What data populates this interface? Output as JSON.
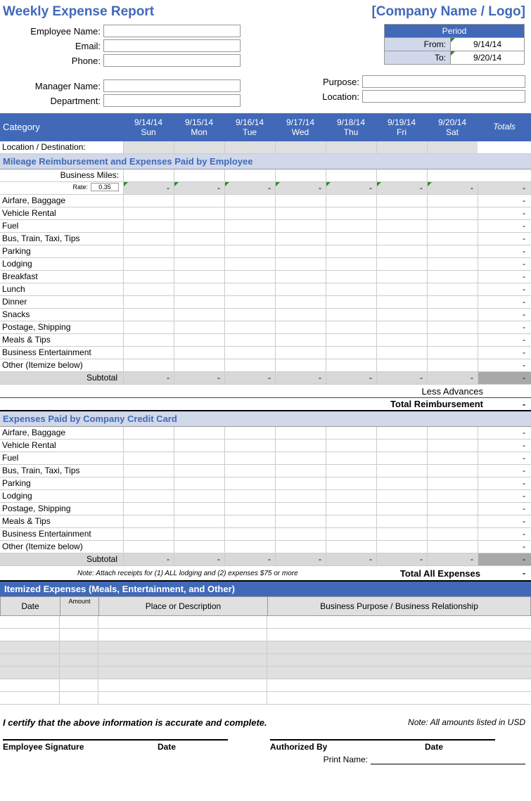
{
  "title": "Weekly Expense Report",
  "company": "[Company Name / Logo]",
  "fields": {
    "employeeName": "Employee Name:",
    "email": "Email:",
    "phone": "Phone:",
    "managerName": "Manager Name:",
    "department": "Department:",
    "purpose": "Purpose:",
    "location": "Location:"
  },
  "period": {
    "header": "Period",
    "fromLabel": "From:",
    "toLabel": "To:",
    "from": "9/14/14",
    "to": "9/20/14"
  },
  "tableHeaders": {
    "category": "Category",
    "totals": "Totals",
    "days": [
      {
        "date": "9/14/14",
        "day": "Sun"
      },
      {
        "date": "9/15/14",
        "day": "Mon"
      },
      {
        "date": "9/16/14",
        "day": "Tue"
      },
      {
        "date": "9/17/14",
        "day": "Wed"
      },
      {
        "date": "9/18/14",
        "day": "Thu"
      },
      {
        "date": "9/19/14",
        "day": "Fri"
      },
      {
        "date": "9/20/14",
        "day": "Sat"
      }
    ]
  },
  "locationDest": "Location / Destination:",
  "section1": {
    "title": "Mileage Reimbursement and Expenses Paid by Employee",
    "businessMiles": "Business Miles:",
    "rateLabel": "Rate:",
    "rateValue": "0.35",
    "rows": [
      "Airfare, Baggage",
      "Vehicle Rental",
      "Fuel",
      "Bus, Train, Taxi, Tips",
      "Parking",
      "Lodging",
      "Breakfast",
      "Lunch",
      "Dinner",
      "Snacks",
      "Postage, Shipping",
      "Meals & Tips",
      "Business Entertainment",
      "Other (Itemize below)"
    ],
    "subtotal": "Subtotal",
    "lessAdvances": "Less Advances",
    "totalReimbursement": "Total Reimbursement"
  },
  "section2": {
    "title": "Expenses Paid by Company Credit Card",
    "rows": [
      "Airfare, Baggage",
      "Vehicle Rental",
      "Fuel",
      "Bus, Train, Taxi, Tips",
      "Parking",
      "Lodging",
      "Postage, Shipping",
      "Meals & Tips",
      "Business Entertainment",
      "Other (Itemize below)"
    ],
    "subtotal": "Subtotal",
    "note": "Note:  Attach receipts for (1) ALL lodging and (2) expenses $75 or more",
    "totalAll": "Total All Expenses"
  },
  "section3": {
    "title": "Itemized Expenses (Meals, Entertainment, and Other)",
    "headers": {
      "date": "Date",
      "amount": "Amount",
      "place": "Place or Description",
      "purpose": "Business Purpose / Business Relationship"
    }
  },
  "certify": "I certify that the above information is accurate and complete.",
  "currencyNote": "Note: All amounts listed in USD",
  "signatures": {
    "employee": "Employee Signature",
    "date": "Date",
    "authorized": "Authorized By",
    "printName": "Print Name:"
  },
  "dash": "-"
}
